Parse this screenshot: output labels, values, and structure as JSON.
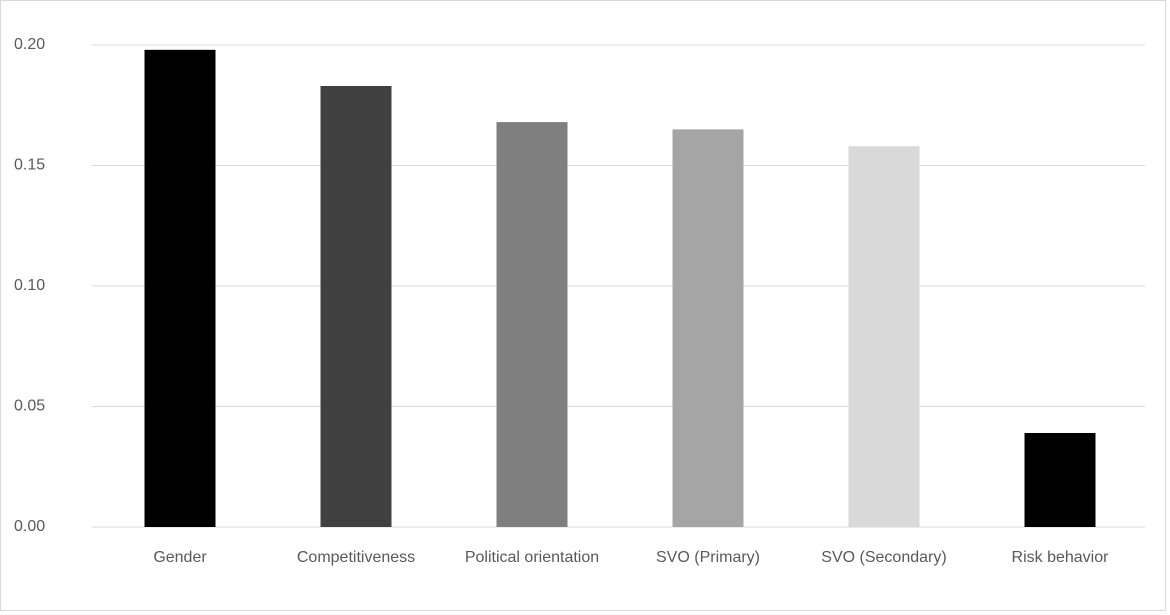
{
  "chart_data": {
    "type": "bar",
    "categories": [
      "Gender",
      "Competitiveness",
      "Political orientation",
      "SVO (Primary)",
      "SVO (Secondary)",
      "Risk behavior"
    ],
    "values": [
      0.198,
      0.183,
      0.168,
      0.165,
      0.158,
      0.039
    ],
    "colors": [
      "#000000",
      "#404040",
      "#7f7f7f",
      "#a5a5a5",
      "#d9d9d9",
      "#000000"
    ],
    "ylim": [
      0,
      0.2
    ],
    "yticks": [
      {
        "value": 0,
        "label": "0.00"
      },
      0.05,
      {
        "value": 0.1,
        "label": "0.10"
      },
      0.15,
      {
        "value": 0.2,
        "label": "0.20"
      }
    ],
    "grid": true
  }
}
